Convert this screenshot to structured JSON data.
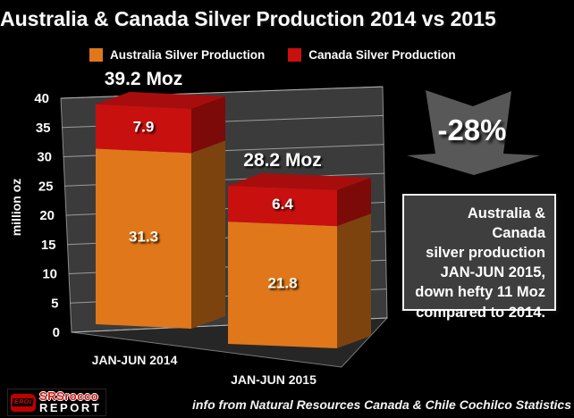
{
  "title": "Australia & Canada Silver Production 2014 vs 2015",
  "legend": {
    "items": [
      {
        "label": "Australia Silver Production",
        "color": "#E0771B"
      },
      {
        "label": "Canada Silver Production",
        "color": "#C8100F"
      }
    ]
  },
  "chart_data": {
    "type": "bar",
    "stacked": true,
    "projection": "3d",
    "categories": [
      "JAN-JUN 2014",
      "JAN-JUN 2015"
    ],
    "series": [
      {
        "name": "Australia Silver Production",
        "values": [
          31.3,
          21.8
        ],
        "color": "#E0771B"
      },
      {
        "name": "Canada Silver Production",
        "values": [
          7.9,
          6.4
        ],
        "color": "#C8100F"
      }
    ],
    "totals": [
      39.2,
      28.2
    ],
    "total_labels": [
      "39.2 Moz",
      "28.2 Moz"
    ],
    "ylabel": "million oz",
    "ylim": [
      0,
      40
    ],
    "ytick_step": 5,
    "grid": true,
    "legend_position": "top",
    "wall_color": "#3B3B3B",
    "floor_color": "#262626",
    "gridline_color": "#C4C4C4"
  },
  "annotation": {
    "arrow_label": "-28%",
    "arrow_color": "#585858"
  },
  "info_box": {
    "lines": [
      "Australia & Canada",
      "silver production",
      "JAN-JUN 2015,",
      "down hefty 11 Moz",
      "compared to 2014."
    ]
  },
  "credit": "info from Natural Resources Canada & Chile Cochilco Statistics",
  "logo": {
    "badge": "EROI",
    "line1": "SRSrocco",
    "line2": "REPORT"
  }
}
